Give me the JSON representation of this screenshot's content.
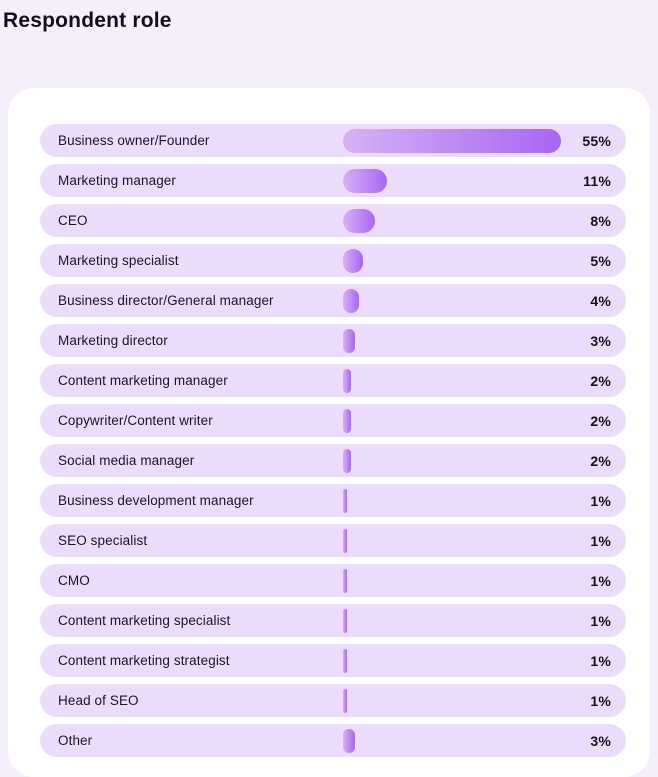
{
  "page": {
    "title": "Respondent role"
  },
  "colors": {
    "page_background": "#f5effc",
    "card_background": "#ffffff",
    "row_background": "#ecdcfb",
    "bar_gradient_start": "#d5b2f5",
    "bar_gradient_end": "#a965f1",
    "text": "#1b1526"
  },
  "chart_data": {
    "type": "bar",
    "orientation": "horizontal",
    "title": "Respondent role",
    "unit": "%",
    "xlim": [
      0,
      55
    ],
    "grid": false,
    "legend": false,
    "categories": [
      "Business owner/Founder",
      "Marketing manager",
      "CEO",
      "Marketing specialist",
      "Business director/General manager",
      "Marketing director",
      "Content marketing manager",
      "Copywriter/Content writer",
      "Social media manager",
      "Business development manager",
      "SEO specialist",
      "CMO",
      "Content marketing specialist",
      "Content marketing strategist",
      "Head of SEO",
      "Other"
    ],
    "values": [
      55,
      11,
      8,
      5,
      4,
      3,
      2,
      2,
      2,
      1,
      1,
      1,
      1,
      1,
      1,
      3
    ],
    "value_labels": [
      "55%",
      "11%",
      "8%",
      "5%",
      "4%",
      "3%",
      "2%",
      "2%",
      "2%",
      "1%",
      "1%",
      "1%",
      "1%",
      "1%",
      "1%",
      "3%"
    ]
  }
}
